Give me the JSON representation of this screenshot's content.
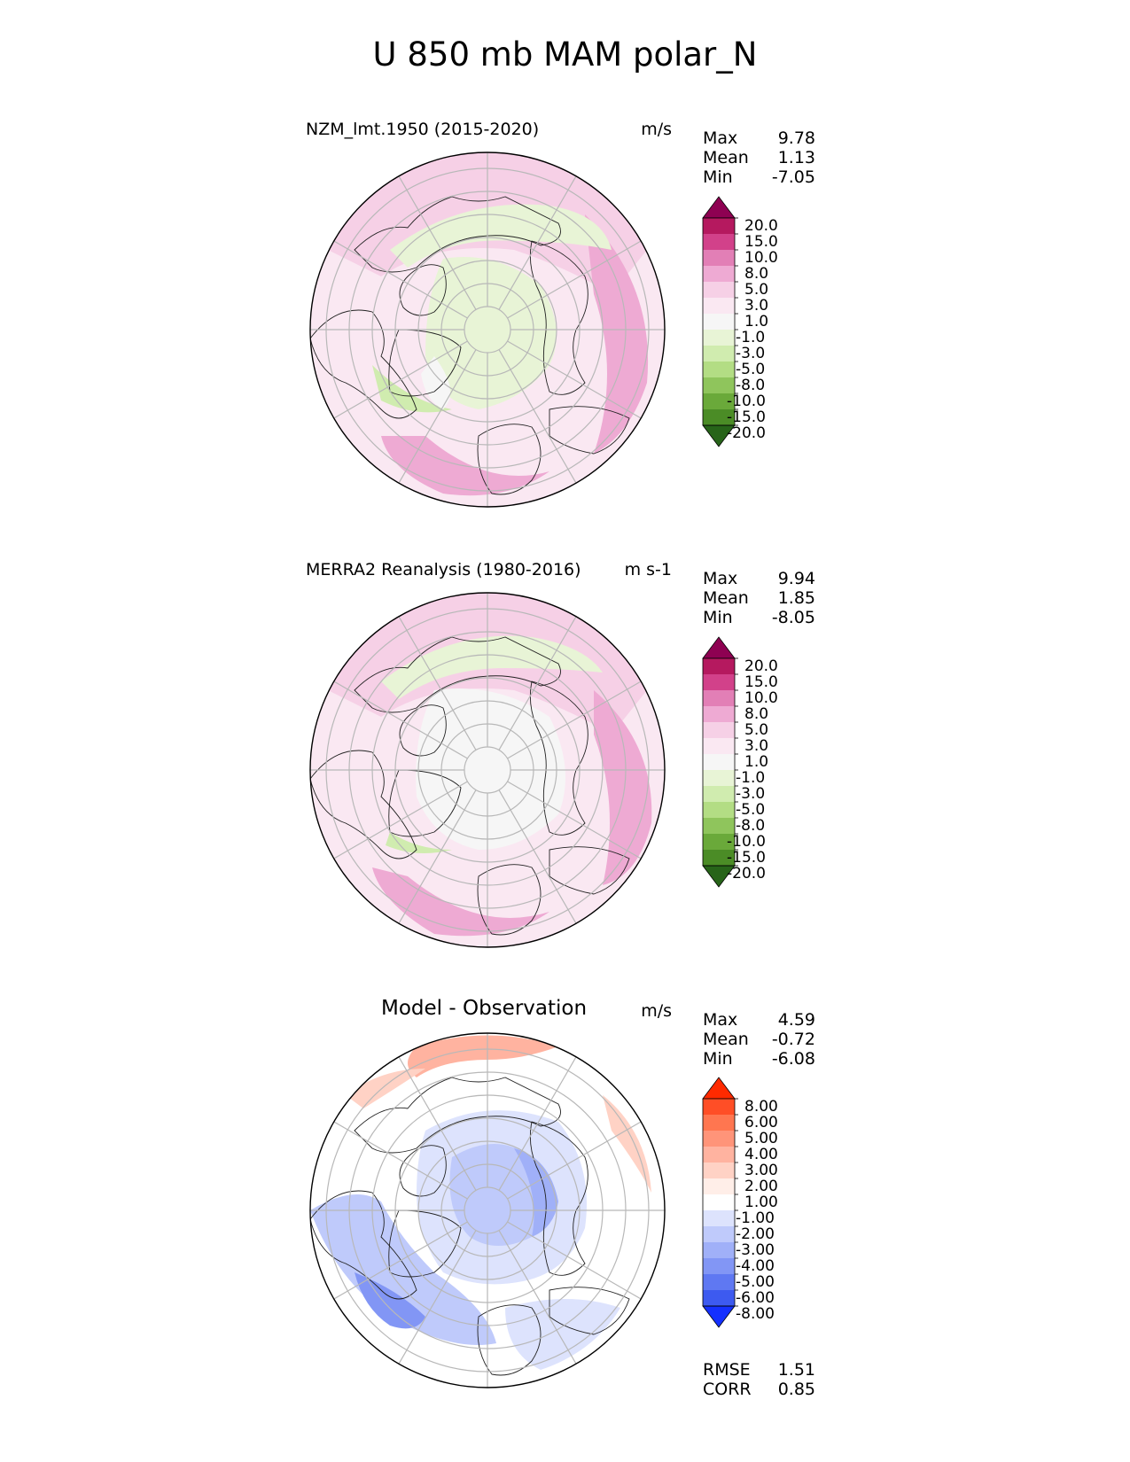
{
  "figure": {
    "title": "U 850 mb MAM polar_N"
  },
  "chart_data": [
    {
      "type": "heatmap",
      "projection": "north polar stereographic",
      "title": "NZM_lmt.1950 (2015-2020)",
      "units": "m/s",
      "stats": [
        {
          "label": "Max",
          "value": "9.78"
        },
        {
          "label": "Mean",
          "value": "1.13"
        },
        {
          "label": "Min",
          "value": "-7.05"
        }
      ],
      "levels": [
        "20.0",
        "15.0",
        "10.0",
        "8.0",
        "5.0",
        "3.0",
        "1.0",
        "-1.0",
        "-3.0",
        "-5.0",
        "-8.0",
        "-10.0",
        "-15.0",
        "-20.0"
      ],
      "colors": [
        "#8e0152",
        "#b5195f",
        "#d2418a",
        "#e27fb6",
        "#eeaad3",
        "#f6d0e6",
        "#fae8f2",
        "#f6f6f6",
        "#e8f4d6",
        "#d0ecaf",
        "#b3dd84",
        "#8fc55c",
        "#6aa93a",
        "#4b8c26",
        "#276419"
      ],
      "colorbar_extend": "both",
      "lowest_contour": [
        "-20.0",
        "<"
      ]
    },
    {
      "type": "heatmap",
      "projection": "north polar stereographic",
      "title": "MERRA2 Reanalysis (1980-2016)",
      "units": "m s-1",
      "stats": [
        {
          "label": "Max",
          "value": "9.94"
        },
        {
          "label": "Mean",
          "value": "1.85"
        },
        {
          "label": "Min",
          "value": "-8.05"
        }
      ],
      "levels": [
        "20.0",
        "15.0",
        "10.0",
        "8.0",
        "5.0",
        "3.0",
        "1.0",
        "-1.0",
        "-3.0",
        "-5.0",
        "-8.0",
        "-10.0",
        "-15.0",
        "-20.0"
      ],
      "colors": [
        "#8e0152",
        "#b5195f",
        "#d2418a",
        "#e27fb6",
        "#eeaad3",
        "#f6d0e6",
        "#fae8f2",
        "#f6f6f6",
        "#e8f4d6",
        "#d0ecaf",
        "#b3dd84",
        "#8fc55c",
        "#6aa93a",
        "#4b8c26",
        "#276419"
      ],
      "colorbar_extend": "both"
    },
    {
      "type": "heatmap",
      "projection": "north polar stereographic",
      "title": "Model - Observation",
      "units": "m/s",
      "stats": [
        {
          "label": "Max",
          "value": "4.59"
        },
        {
          "label": "Mean",
          "value": "-0.72"
        },
        {
          "label": "Min",
          "value": "-6.08"
        }
      ],
      "levels": [
        "8.00",
        "6.00",
        "5.00",
        "4.00",
        "3.00",
        "2.00",
        "1.00",
        "-1.00",
        "-2.00",
        "-3.00",
        "-4.00",
        "-5.00",
        "-6.00",
        "-8.00"
      ],
      "colors": [
        "#ff2a00",
        "#ff4e26",
        "#ff7650",
        "#ff9479",
        "#ffb3a0",
        "#ffd2c5",
        "#ffeee8",
        "#ffffff",
        "#dde3fd",
        "#bfcafb",
        "#a0b0f8",
        "#8296f5",
        "#5f78f2",
        "#3d5af0",
        "#1430ff"
      ],
      "colorbar_extend": "both",
      "metrics": [
        {
          "label": "RMSE",
          "value": "1.51"
        },
        {
          "label": "CORR",
          "value": "0.85"
        }
      ]
    }
  ]
}
